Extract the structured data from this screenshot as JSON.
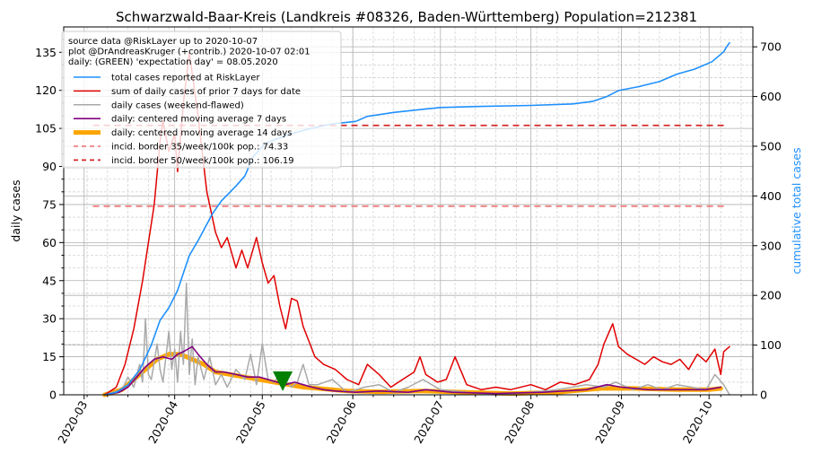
{
  "chart_data": {
    "type": "line",
    "title": "Schwarzwald-Baar-Kreis (Landkreis #08326, Baden-Württemberg) Population=212381",
    "ylabel_left": "daily cases",
    "ylabel_right": "cumulative total cases",
    "ylim_left": [
      0,
      145
    ],
    "ylim_right": [
      0,
      740
    ],
    "yticks_left": [
      "0",
      "15",
      "30",
      "45",
      "60",
      "75",
      "90",
      "105",
      "120",
      "135"
    ],
    "yticks_right": [
      "0",
      "100",
      "200",
      "300",
      "400",
      "500",
      "600",
      "700"
    ],
    "xlim": [
      "2020-02-23",
      "2020-10-16"
    ],
    "xticks": [
      "2020-03",
      "2020-04",
      "2020-05",
      "2020-06",
      "2020-07",
      "2020-08",
      "2020-09",
      "2020-10"
    ],
    "grid": "major and minor, both axes",
    "legend_position": "top-left",
    "info_lines": [
      "source data @RiskLayer up to 2020-10-07",
      "plot @DrAndreasKruger (+contrib.) 2020-10-07 02:01",
      "daily: (GREEN) 'expectation day' = 08.05.2020"
    ],
    "expectation_day": {
      "date": "2020-05-08",
      "value": 5,
      "color": "#008000"
    },
    "thresholds": [
      {
        "name": "incid. border 35/week/100k pop.: 74.33",
        "value": 74.33,
        "color": "#f08080",
        "start": "2020-03-04",
        "end": "2020-10-07"
      },
      {
        "name": "incid. border 50/week/100k pop.: 106.19",
        "value": 106.19,
        "color": "#d62728",
        "start": "2020-03-04",
        "end": "2020-10-07"
      }
    ],
    "series": [
      {
        "name": "total cases reported at RiskLayer",
        "axis": "right",
        "color": "#1e90ff",
        "points": [
          [
            "2020-03-08",
            0
          ],
          [
            "2020-03-12",
            5
          ],
          [
            "2020-03-16",
            20
          ],
          [
            "2020-03-20",
            50
          ],
          [
            "2020-03-24",
            100
          ],
          [
            "2020-03-27",
            150
          ],
          [
            "2020-03-30",
            175
          ],
          [
            "2020-04-02",
            210
          ],
          [
            "2020-04-06",
            280
          ],
          [
            "2020-04-09",
            310
          ],
          [
            "2020-04-14",
            365
          ],
          [
            "2020-04-17",
            390
          ],
          [
            "2020-04-22",
            420
          ],
          [
            "2020-04-25",
            440
          ],
          [
            "2020-04-28",
            480
          ],
          [
            "2020-05-02",
            505
          ],
          [
            "2020-05-06",
            515
          ],
          [
            "2020-05-11",
            525
          ],
          [
            "2020-05-17",
            535
          ],
          [
            "2020-05-25",
            545
          ],
          [
            "2020-06-02",
            550
          ],
          [
            "2020-06-06",
            560
          ],
          [
            "2020-06-15",
            568
          ],
          [
            "2020-06-26",
            575
          ],
          [
            "2020-07-01",
            578
          ],
          [
            "2020-07-15",
            580
          ],
          [
            "2020-08-01",
            582
          ],
          [
            "2020-08-15",
            585
          ],
          [
            "2020-08-22",
            590
          ],
          [
            "2020-08-27",
            600
          ],
          [
            "2020-08-31",
            612
          ],
          [
            "2020-09-07",
            620
          ],
          [
            "2020-09-14",
            630
          ],
          [
            "2020-09-20",
            645
          ],
          [
            "2020-09-26",
            655
          ],
          [
            "2020-10-02",
            670
          ],
          [
            "2020-10-06",
            690
          ],
          [
            "2020-10-07",
            700
          ],
          [
            "2020-10-08",
            708
          ]
        ]
      },
      {
        "name": "sum of daily cases of prior 7 days for date",
        "axis": "left",
        "color": "#e00000",
        "points": [
          [
            "2020-03-08",
            0
          ],
          [
            "2020-03-12",
            3
          ],
          [
            "2020-03-15",
            12
          ],
          [
            "2020-03-18",
            26
          ],
          [
            "2020-03-21",
            45
          ],
          [
            "2020-03-23",
            60
          ],
          [
            "2020-03-25",
            75
          ],
          [
            "2020-03-27",
            100
          ],
          [
            "2020-03-28",
            108
          ],
          [
            "2020-03-30",
            96
          ],
          [
            "2020-04-01",
            103
          ],
          [
            "2020-04-02",
            88
          ],
          [
            "2020-04-04",
            115
          ],
          [
            "2020-04-06",
            135
          ],
          [
            "2020-04-09",
            110
          ],
          [
            "2020-04-12",
            80
          ],
          [
            "2020-04-15",
            64
          ],
          [
            "2020-04-17",
            58
          ],
          [
            "2020-04-19",
            62
          ],
          [
            "2020-04-22",
            50
          ],
          [
            "2020-04-24",
            57
          ],
          [
            "2020-04-26",
            50
          ],
          [
            "2020-04-29",
            62
          ],
          [
            "2020-05-01",
            52
          ],
          [
            "2020-05-03",
            44
          ],
          [
            "2020-05-05",
            47
          ],
          [
            "2020-05-07",
            35
          ],
          [
            "2020-05-09",
            26
          ],
          [
            "2020-05-11",
            38
          ],
          [
            "2020-05-13",
            37
          ],
          [
            "2020-05-15",
            27
          ],
          [
            "2020-05-17",
            21
          ],
          [
            "2020-05-19",
            15
          ],
          [
            "2020-05-22",
            12
          ],
          [
            "2020-05-26",
            10
          ],
          [
            "2020-05-30",
            6
          ],
          [
            "2020-06-03",
            4
          ],
          [
            "2020-06-06",
            12
          ],
          [
            "2020-06-10",
            8
          ],
          [
            "2020-06-14",
            3
          ],
          [
            "2020-06-18",
            6
          ],
          [
            "2020-06-22",
            9
          ],
          [
            "2020-06-24",
            15
          ],
          [
            "2020-06-26",
            8
          ],
          [
            "2020-06-30",
            5
          ],
          [
            "2020-07-03",
            6
          ],
          [
            "2020-07-06",
            15
          ],
          [
            "2020-07-10",
            4
          ],
          [
            "2020-07-15",
            2
          ],
          [
            "2020-07-20",
            3
          ],
          [
            "2020-07-25",
            2
          ],
          [
            "2020-08-01",
            4
          ],
          [
            "2020-08-06",
            2
          ],
          [
            "2020-08-11",
            5
          ],
          [
            "2020-08-16",
            4
          ],
          [
            "2020-08-21",
            6
          ],
          [
            "2020-08-24",
            12
          ],
          [
            "2020-08-26",
            20
          ],
          [
            "2020-08-29",
            28
          ],
          [
            "2020-08-31",
            19
          ],
          [
            "2020-09-03",
            16
          ],
          [
            "2020-09-06",
            14
          ],
          [
            "2020-09-09",
            12
          ],
          [
            "2020-09-12",
            15
          ],
          [
            "2020-09-15",
            13
          ],
          [
            "2020-09-18",
            12
          ],
          [
            "2020-09-21",
            14
          ],
          [
            "2020-09-24",
            10
          ],
          [
            "2020-09-27",
            16
          ],
          [
            "2020-09-30",
            13
          ],
          [
            "2020-10-03",
            18
          ],
          [
            "2020-10-05",
            8
          ],
          [
            "2020-10-06",
            17
          ],
          [
            "2020-10-08",
            19
          ]
        ]
      },
      {
        "name": "daily cases (weekend-flawed)",
        "axis": "left",
        "color": "#a9a9a9",
        "points": [
          [
            "2020-03-08",
            0
          ],
          [
            "2020-03-14",
            2
          ],
          [
            "2020-03-16",
            7
          ],
          [
            "2020-03-18",
            3
          ],
          [
            "2020-03-20",
            12
          ],
          [
            "2020-03-21",
            5
          ],
          [
            "2020-03-22",
            30
          ],
          [
            "2020-03-23",
            8
          ],
          [
            "2020-03-24",
            6
          ],
          [
            "2020-03-26",
            20
          ],
          [
            "2020-03-27",
            10
          ],
          [
            "2020-03-28",
            5
          ],
          [
            "2020-03-30",
            25
          ],
          [
            "2020-03-31",
            10
          ],
          [
            "2020-04-01",
            18
          ],
          [
            "2020-04-02",
            5
          ],
          [
            "2020-04-03",
            25
          ],
          [
            "2020-04-04",
            12
          ],
          [
            "2020-04-05",
            44
          ],
          [
            "2020-04-06",
            8
          ],
          [
            "2020-04-07",
            22
          ],
          [
            "2020-04-08",
            4
          ],
          [
            "2020-04-09",
            15
          ],
          [
            "2020-04-11",
            6
          ],
          [
            "2020-04-13",
            15
          ],
          [
            "2020-04-15",
            4
          ],
          [
            "2020-04-17",
            8
          ],
          [
            "2020-04-19",
            3
          ],
          [
            "2020-04-22",
            10
          ],
          [
            "2020-04-25",
            6
          ],
          [
            "2020-04-27",
            16
          ],
          [
            "2020-04-29",
            4
          ],
          [
            "2020-05-01",
            20
          ],
          [
            "2020-05-03",
            6
          ],
          [
            "2020-05-05",
            5
          ],
          [
            "2020-05-07",
            8
          ],
          [
            "2020-05-11",
            3
          ],
          [
            "2020-05-13",
            5
          ],
          [
            "2020-05-15",
            12
          ],
          [
            "2020-05-17",
            4
          ],
          [
            "2020-05-20",
            4
          ],
          [
            "2020-05-25",
            6
          ],
          [
            "2020-05-30",
            1
          ],
          [
            "2020-06-05",
            3
          ],
          [
            "2020-06-10",
            4
          ],
          [
            "2020-06-15",
            1
          ],
          [
            "2020-06-20",
            3
          ],
          [
            "2020-06-25",
            6
          ],
          [
            "2020-07-01",
            2
          ],
          [
            "2020-07-10",
            1
          ],
          [
            "2020-07-20",
            0
          ],
          [
            "2020-08-01",
            1
          ],
          [
            "2020-08-10",
            2
          ],
          [
            "2020-08-20",
            4
          ],
          [
            "2020-08-26",
            3
          ],
          [
            "2020-08-30",
            5
          ],
          [
            "2020-09-05",
            2
          ],
          [
            "2020-09-10",
            4
          ],
          [
            "2020-09-15",
            2
          ],
          [
            "2020-09-20",
            4
          ],
          [
            "2020-09-25",
            3
          ],
          [
            "2020-09-30",
            2
          ],
          [
            "2020-10-03",
            8
          ],
          [
            "2020-10-06",
            4
          ],
          [
            "2020-10-08",
            0
          ]
        ]
      },
      {
        "name": "daily: centered moving average 7 days",
        "axis": "left",
        "color": "#800080",
        "points": [
          [
            "2020-03-08",
            0
          ],
          [
            "2020-03-13",
            1
          ],
          [
            "2020-03-16",
            3
          ],
          [
            "2020-03-19",
            7
          ],
          [
            "2020-03-22",
            11
          ],
          [
            "2020-03-25",
            14
          ],
          [
            "2020-03-28",
            15
          ],
          [
            "2020-03-31",
            14
          ],
          [
            "2020-04-02",
            16
          ],
          [
            "2020-04-04",
            17
          ],
          [
            "2020-04-07",
            19
          ],
          [
            "2020-04-09",
            16
          ],
          [
            "2020-04-12",
            12
          ],
          [
            "2020-04-15",
            9
          ],
          [
            "2020-04-18",
            9
          ],
          [
            "2020-04-22",
            8
          ],
          [
            "2020-04-26",
            7
          ],
          [
            "2020-04-30",
            7
          ],
          [
            "2020-05-03",
            6
          ],
          [
            "2020-05-06",
            5
          ],
          [
            "2020-05-09",
            4
          ],
          [
            "2020-05-12",
            5
          ],
          [
            "2020-05-15",
            4
          ],
          [
            "2020-05-18",
            3
          ],
          [
            "2020-05-22",
            2
          ],
          [
            "2020-05-26",
            1.5
          ],
          [
            "2020-06-02",
            1
          ],
          [
            "2020-06-10",
            1.5
          ],
          [
            "2020-06-20",
            1
          ],
          [
            "2020-06-26",
            2
          ],
          [
            "2020-07-05",
            1
          ],
          [
            "2020-07-20",
            0.5
          ],
          [
            "2020-08-05",
            1
          ],
          [
            "2020-08-20",
            2
          ],
          [
            "2020-08-27",
            4
          ],
          [
            "2020-09-01",
            3
          ],
          [
            "2020-09-10",
            2
          ],
          [
            "2020-09-20",
            2
          ],
          [
            "2020-09-30",
            2
          ],
          [
            "2020-10-05",
            3
          ]
        ]
      },
      {
        "name": "daily: centered moving average 14 days",
        "axis": "left",
        "color": "#ffa500",
        "points": [
          [
            "2020-03-08",
            0
          ],
          [
            "2020-03-14",
            2
          ],
          [
            "2020-03-18",
            6
          ],
          [
            "2020-03-22",
            10
          ],
          [
            "2020-03-26",
            14
          ],
          [
            "2020-03-30",
            16
          ],
          [
            "2020-04-03",
            16
          ],
          [
            "2020-04-07",
            14
          ],
          [
            "2020-04-11",
            12
          ],
          [
            "2020-04-15",
            9
          ],
          [
            "2020-04-20",
            8
          ],
          [
            "2020-04-25",
            7
          ],
          [
            "2020-04-30",
            6
          ],
          [
            "2020-05-05",
            5
          ],
          [
            "2020-05-10",
            4
          ],
          [
            "2020-05-15",
            3
          ],
          [
            "2020-05-20",
            2.5
          ],
          [
            "2020-05-30",
            1.5
          ],
          [
            "2020-06-10",
            1.2
          ],
          [
            "2020-06-25",
            1.5
          ],
          [
            "2020-07-10",
            1
          ],
          [
            "2020-07-25",
            0.5
          ],
          [
            "2020-08-10",
            1
          ],
          [
            "2020-08-25",
            2.5
          ],
          [
            "2020-09-05",
            2.5
          ],
          [
            "2020-09-20",
            2
          ],
          [
            "2020-10-01",
            2
          ],
          [
            "2020-10-05",
            2.5
          ]
        ]
      }
    ]
  }
}
